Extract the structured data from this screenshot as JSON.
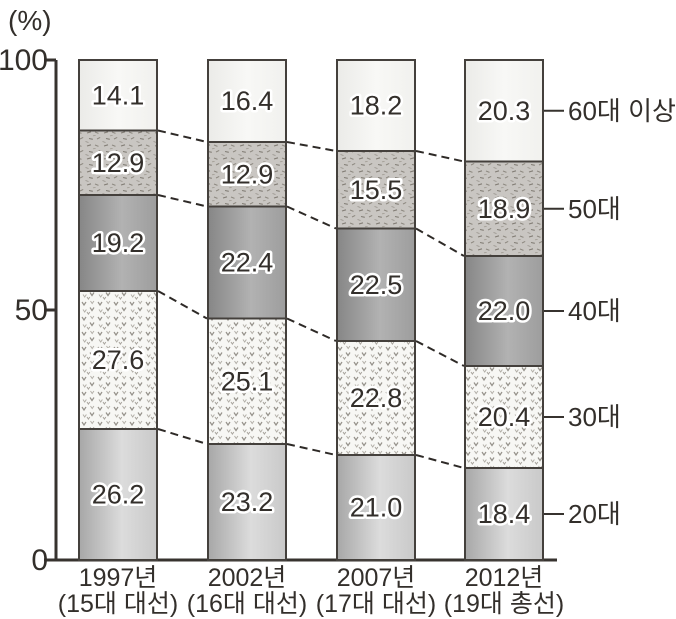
{
  "chart_data": {
    "type": "bar",
    "stacked": true,
    "title": "",
    "unit_label": "(%)",
    "ylabel": "(%)",
    "xlabel": "",
    "ylim": [
      0,
      100
    ],
    "yticks": [
      0,
      50,
      100
    ],
    "grid": false,
    "legend_position": "right-of-last-bar",
    "categories": [
      "1997년",
      "2002년",
      "2007년",
      "2012년"
    ],
    "category_sublabels": [
      "(15대 대선)",
      "(16대 대선)",
      "(17대 대선)",
      "(19대 총선)"
    ],
    "series": [
      {
        "name": "20대",
        "values": [
          26.2,
          23.2,
          21.0,
          18.4
        ],
        "labels": [
          "26.2",
          "23.2",
          "21.0",
          "18.4"
        ],
        "style": "gradient-medium-gray",
        "color": "#c3c3c3"
      },
      {
        "name": "30대",
        "values": [
          27.6,
          25.1,
          22.8,
          20.4
        ],
        "labels": [
          "27.6",
          "25.1",
          "22.8",
          "20.4"
        ],
        "style": "v-marks-pattern",
        "color": "#f6f6f3"
      },
      {
        "name": "40대",
        "values": [
          19.2,
          22.4,
          22.5,
          22.0
        ],
        "labels": [
          "19.2",
          "22.4",
          "22.5",
          "22.0"
        ],
        "style": "gradient-dark-gray",
        "color": "#9e9e9e"
      },
      {
        "name": "50대",
        "values": [
          12.9,
          12.9,
          15.5,
          18.9
        ],
        "labels": [
          "12.9",
          "12.9",
          "15.5",
          "18.9"
        ],
        "style": "speckle-pattern",
        "color": "#c9c6c2"
      },
      {
        "name": "60대 이상",
        "values": [
          14.1,
          16.4,
          18.2,
          20.3
        ],
        "labels": [
          "14.1",
          "16.4",
          "18.2",
          "20.3"
        ],
        "style": "gradient-near-white",
        "color": "#f2f2ef"
      }
    ],
    "right_labels": [
      "60대 이상",
      "50대",
      "40대",
      "30대",
      "20대"
    ],
    "dashed_connectors_between_bars": true,
    "colors": {
      "axis": "#37332f",
      "segment_border": "#44403c",
      "value_text": "#332f2b",
      "value_text_halo": "#ffffff",
      "connector": "#2e2a27",
      "background": "#ffffff"
    }
  }
}
